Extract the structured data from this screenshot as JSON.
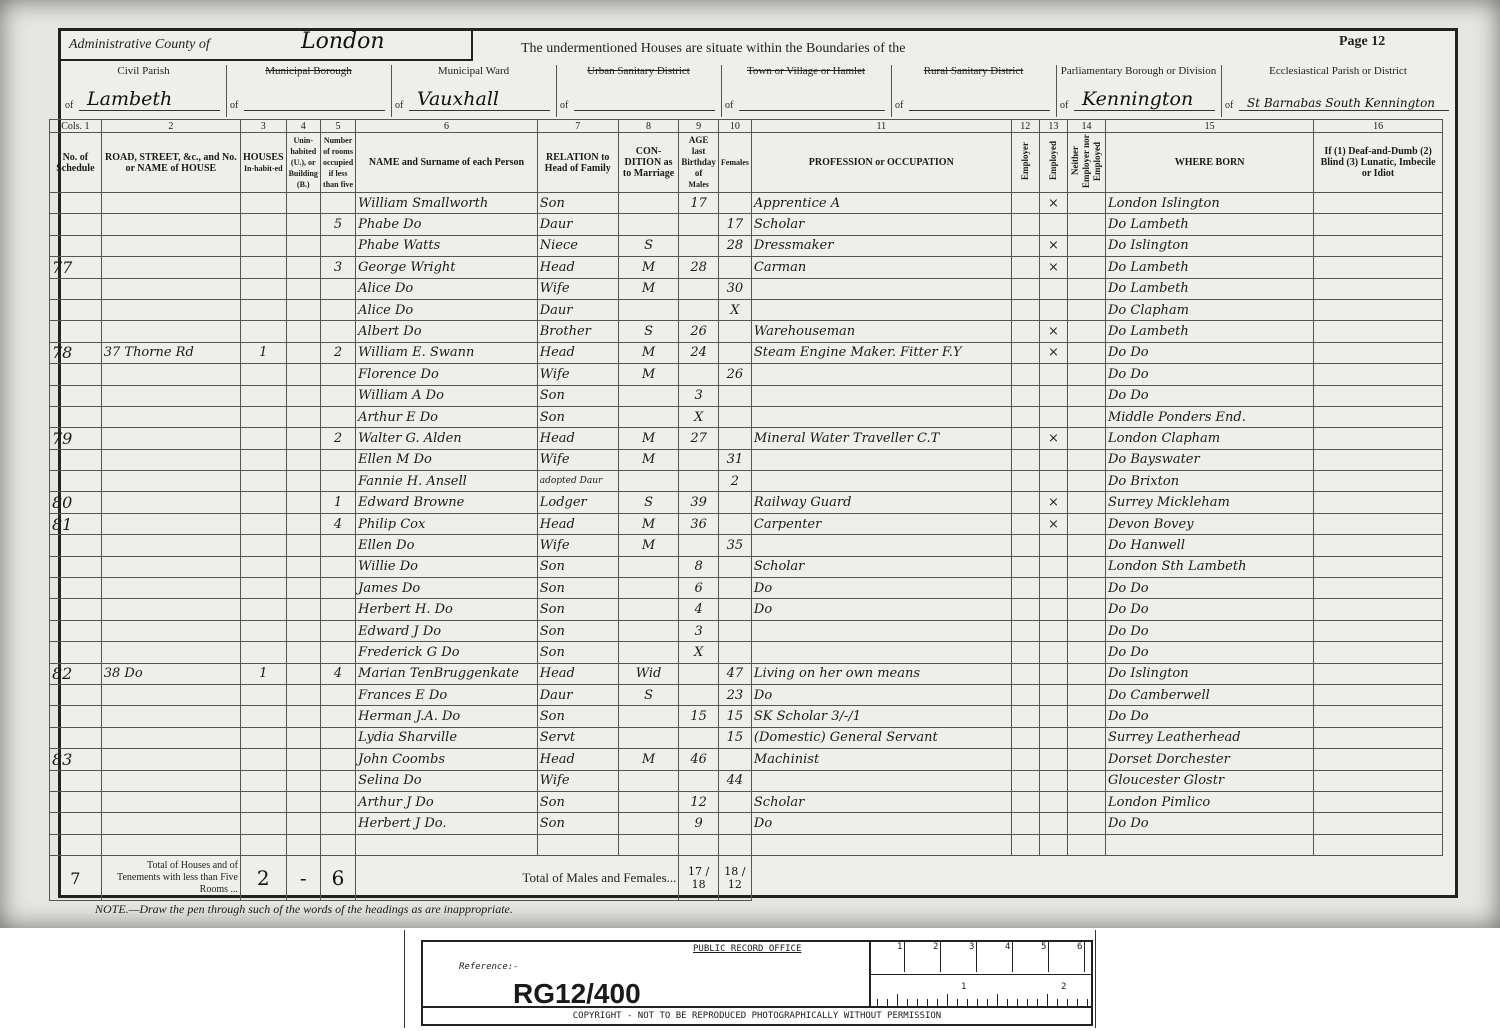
{
  "header": {
    "county_label": "Administrative County of",
    "county_value": "London",
    "intro": "The undermentioned Houses are situate within the Boundaries of the",
    "page": "Page 12",
    "of": "of",
    "districts": [
      {
        "label": "Civil Parish",
        "value": "Lambeth",
        "struck": false
      },
      {
        "label": "Municipal Borough",
        "value": "",
        "struck": true
      },
      {
        "label": "Municipal Ward",
        "value": "Vauxhall",
        "struck": false
      },
      {
        "label": "Urban Sanitary District",
        "value": "",
        "struck": true
      },
      {
        "label": "Town or Village or Hamlet",
        "value": "",
        "struck": true
      },
      {
        "label": "Rural Sanitary District",
        "value": "",
        "struck": true
      },
      {
        "label": "Parliamentary Borough or Division",
        "value": "Kennington",
        "struck": false
      },
      {
        "label": "Ecclesiastical Parish or District",
        "value": "St Barnabas South Kennington",
        "struck": false
      }
    ]
  },
  "columns": {
    "numbers": [
      "Cols. 1",
      "2",
      "3",
      "4",
      "5",
      "6",
      "7",
      "8",
      "9",
      "10",
      "11",
      "12",
      "13",
      "14",
      "15",
      "16"
    ],
    "houses": "HOUSES",
    "age_group": "AGE last Birthday of",
    "labels": [
      "No. of Schedule",
      "ROAD, STREET, &c., and No. or NAME of HOUSE",
      "In-habit-ed",
      "Unin-habited (U.), or Building (B.)",
      "Number of rooms occupied if less than five",
      "NAME and Surname of each Person",
      "RELATION to Head of Family",
      "CON-DITION as to Marriage",
      "Males",
      "Females",
      "PROFESSION or OCCUPATION",
      "Employer",
      "Employed",
      "Neither Employer nor Employed",
      "WHERE BORN",
      "If (1) Deaf-and-Dumb (2) Blind (3) Lunatic, Imbecile or Idiot"
    ]
  },
  "rows": [
    [
      "",
      "",
      "",
      "",
      "",
      "William Smallworth",
      "Son",
      "",
      "17",
      "",
      "Apprentice A",
      "",
      "×",
      "",
      "London Islington",
      ""
    ],
    [
      "",
      "",
      "",
      "",
      "5",
      "Phabe Do",
      "Daur",
      "",
      "",
      "17",
      "Scholar",
      "",
      "",
      "",
      "Do Lambeth",
      ""
    ],
    [
      "",
      "",
      "",
      "",
      "",
      "Phabe Watts",
      "Niece",
      "S",
      "",
      "28",
      "Dressmaker",
      "",
      "×",
      "",
      "Do Islington",
      ""
    ],
    [
      "77",
      "",
      "",
      "",
      "3",
      "George Wright",
      "Head",
      "M",
      "28",
      "",
      "Carman",
      "",
      "×",
      "",
      "Do Lambeth",
      ""
    ],
    [
      "",
      "",
      "",
      "",
      "",
      "Alice Do",
      "Wife",
      "M",
      "",
      "30",
      "",
      "",
      "",
      "",
      "Do Lambeth",
      ""
    ],
    [
      "",
      "",
      "",
      "",
      "",
      "Alice Do",
      "Daur",
      "",
      "",
      "X",
      "",
      "",
      "",
      "",
      "Do Clapham",
      ""
    ],
    [
      "",
      "",
      "",
      "",
      "",
      "Albert Do",
      "Brother",
      "S",
      "26",
      "",
      "Warehouseman",
      "",
      "×",
      "",
      "Do Lambeth",
      ""
    ],
    [
      "78",
      "37 Thorne Rd",
      "1",
      "",
      "2",
      "William E. Swann",
      "Head",
      "M",
      "24",
      "",
      "Steam Engine Maker. Fitter F.Y",
      "",
      "×",
      "",
      "Do Do",
      ""
    ],
    [
      "",
      "",
      "",
      "",
      "",
      "Florence Do",
      "Wife",
      "M",
      "",
      "26",
      "",
      "",
      "",
      "",
      "Do Do",
      ""
    ],
    [
      "",
      "",
      "",
      "",
      "",
      "William A Do",
      "Son",
      "",
      "3",
      "",
      "",
      "",
      "",
      "",
      "Do Do",
      ""
    ],
    [
      "",
      "",
      "",
      "",
      "",
      "Arthur E Do",
      "Son",
      "",
      "X",
      "",
      "",
      "",
      "",
      "",
      "Middle Ponders End.",
      ""
    ],
    [
      "79",
      "",
      "",
      "",
      "2",
      "Walter G. Alden",
      "Head",
      "M",
      "27",
      "",
      "Mineral Water Traveller C.T",
      "",
      "×",
      "",
      "London Clapham",
      ""
    ],
    [
      "",
      "",
      "",
      "",
      "",
      "Ellen M Do",
      "Wife",
      "M",
      "",
      "31",
      "",
      "",
      "",
      "",
      "Do Bayswater",
      ""
    ],
    [
      "",
      "",
      "",
      "",
      "",
      "Fannie H. Ansell",
      "adopted Daur",
      "",
      "",
      "2",
      "",
      "",
      "",
      "",
      "Do Brixton",
      ""
    ],
    [
      "80",
      "",
      "",
      "",
      "1",
      "Edward Browne",
      "Lodger",
      "S",
      "39",
      "",
      "Railway Guard",
      "",
      "×",
      "",
      "Surrey Mickleham",
      ""
    ],
    [
      "81",
      "",
      "",
      "",
      "4",
      "Philip Cox",
      "Head",
      "M",
      "36",
      "",
      "Carpenter",
      "",
      "×",
      "",
      "Devon Bovey",
      ""
    ],
    [
      "",
      "",
      "",
      "",
      "",
      "Ellen Do",
      "Wife",
      "M",
      "",
      "35",
      "",
      "",
      "",
      "",
      "Do Hanwell",
      ""
    ],
    [
      "",
      "",
      "",
      "",
      "",
      "Willie Do",
      "Son",
      "",
      "8",
      "",
      "Scholar",
      "",
      "",
      "",
      "London Sth Lambeth",
      ""
    ],
    [
      "",
      "",
      "",
      "",
      "",
      "James Do",
      "Son",
      "",
      "6",
      "",
      "Do",
      "",
      "",
      "",
      "Do Do",
      ""
    ],
    [
      "",
      "",
      "",
      "",
      "",
      "Herbert H. Do",
      "Son",
      "",
      "4",
      "",
      "Do",
      "",
      "",
      "",
      "Do Do",
      ""
    ],
    [
      "",
      "",
      "",
      "",
      "",
      "Edward J Do",
      "Son",
      "",
      "3",
      "",
      "",
      "",
      "",
      "",
      "Do Do",
      ""
    ],
    [
      "",
      "",
      "",
      "",
      "",
      "Frederick G Do",
      "Son",
      "",
      "X",
      "",
      "",
      "",
      "",
      "",
      "Do Do",
      ""
    ],
    [
      "82",
      "38 Do",
      "1",
      "",
      "4",
      "Marian TenBruggenkate",
      "Head",
      "Wid",
      "",
      "47",
      "Living on her own means",
      "",
      "",
      "",
      "Do Islington",
      ""
    ],
    [
      "",
      "",
      "",
      "",
      "",
      "Frances E Do",
      "Daur",
      "S",
      "",
      "23",
      "Do",
      "",
      "",
      "",
      "Do Camberwell",
      ""
    ],
    [
      "",
      "",
      "",
      "",
      "",
      "Herman J.A. Do",
      "Son",
      "",
      "15",
      "15",
      "SK Scholar 3/-/1",
      "",
      "",
      "",
      "Do Do",
      ""
    ],
    [
      "",
      "",
      "",
      "",
      "",
      "Lydia Sharville",
      "Servt",
      "",
      "",
      "15",
      "(Domestic) General Servant",
      "",
      "",
      "",
      "Surrey Leatherhead",
      ""
    ],
    [
      "83",
      "",
      "",
      "",
      "",
      "John Coombs",
      "Head",
      "M",
      "46",
      "",
      "Machinist",
      "",
      "",
      "",
      "Dorset Dorchester",
      ""
    ],
    [
      "",
      "",
      "",
      "",
      "",
      "Selina Do",
      "Wife",
      "",
      "",
      "44",
      "",
      "",
      "",
      "",
      "Gloucester Glostr",
      ""
    ],
    [
      "",
      "",
      "",
      "",
      "",
      "Arthur J Do",
      "Son",
      "",
      "12",
      "",
      "Scholar",
      "",
      "",
      "",
      "London Pimlico",
      ""
    ],
    [
      "",
      "",
      "",
      "",
      "",
      "Herbert J Do.",
      "Son",
      "",
      "9",
      "",
      "Do",
      "",
      "",
      "",
      "Do Do",
      ""
    ],
    [
      "",
      "",
      "",
      "",
      "",
      "",
      "",
      "",
      "",
      "",
      "",
      "",
      "",
      "",
      "",
      ""
    ]
  ],
  "totals": {
    "schedules": "7",
    "label": "Total of Houses and of Tenements with less than Five Rooms ...",
    "inhabited": "2",
    "uninhabited": "-",
    "rooms": "6",
    "persons_label": "Total of Males and Females...",
    "males": "17 / 18",
    "females": "18 / 12"
  },
  "note": "NOTE.—Draw the pen through such of the words of the headings as are inappropriate.",
  "card": {
    "office": "PUBLIC RECORD OFFICE",
    "reference_label": "Reference:-",
    "reference": "RG12/400",
    "copyright": "COPYRIGHT - NOT TO BE REPRODUCED PHOTOGRAPHICALLY WITHOUT PERMISSION",
    "scale_top": [
      "1",
      "2",
      "3",
      "4",
      "5",
      "6"
    ],
    "scale_bottom": [
      "1",
      "2"
    ]
  }
}
